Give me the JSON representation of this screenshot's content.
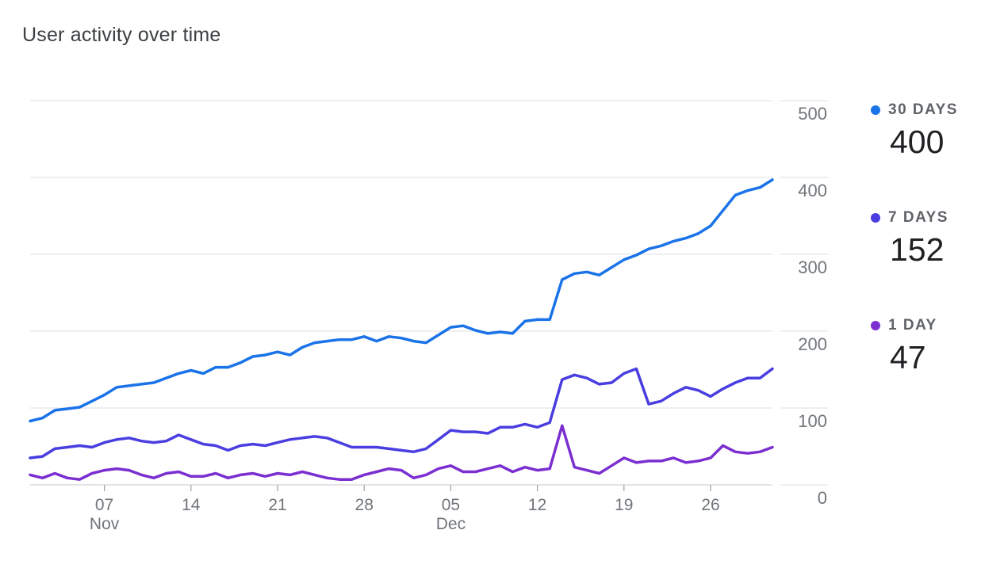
{
  "title": "User activity over time",
  "chart_data": {
    "type": "line",
    "title": "User activity over time",
    "ylim": [
      0,
      500
    ],
    "yticks": [
      0,
      100,
      200,
      300,
      400,
      500
    ],
    "xticks": [
      {
        "label": "07",
        "sub": "Nov",
        "index": 6
      },
      {
        "label": "14",
        "sub": "",
        "index": 13
      },
      {
        "label": "21",
        "sub": "",
        "index": 20
      },
      {
        "label": "28",
        "sub": "",
        "index": 27
      },
      {
        "label": "05",
        "sub": "Dec",
        "index": 34
      },
      {
        "label": "12",
        "sub": "",
        "index": 41
      },
      {
        "label": "19",
        "sub": "",
        "index": 48
      },
      {
        "label": "26",
        "sub": "",
        "index": 55
      }
    ],
    "series": [
      {
        "name": "30 DAYS",
        "color": "#1a73e8",
        "values": [
          83,
          87,
          97,
          99,
          101,
          109,
          117,
          127,
          129,
          131,
          133,
          139,
          145,
          149,
          145,
          153,
          153,
          159,
          167,
          169,
          173,
          169,
          179,
          185,
          187,
          189,
          189,
          193,
          187,
          193,
          191,
          187,
          185,
          195,
          205,
          207,
          201,
          197,
          199,
          197,
          213,
          215,
          215,
          267,
          275,
          277,
          273,
          283,
          293,
          299,
          307,
          311,
          317,
          321,
          327,
          337,
          357,
          377,
          383,
          387,
          397
        ]
      },
      {
        "name": "7 DAYS",
        "color": "#4a3ee0",
        "values": [
          35,
          37,
          47,
          49,
          51,
          49,
          55,
          59,
          61,
          57,
          55,
          57,
          65,
          59,
          53,
          51,
          45,
          51,
          53,
          51,
          55,
          59,
          61,
          63,
          61,
          55,
          49,
          49,
          49,
          47,
          45,
          43,
          47,
          59,
          71,
          69,
          69,
          67,
          75,
          75,
          79,
          75,
          81,
          137,
          143,
          139,
          131,
          133,
          145,
          151,
          105,
          109,
          119,
          127,
          123,
          115,
          125,
          133,
          139,
          139,
          151
        ]
      },
      {
        "name": "1 DAY",
        "color": "#7b2fd0",
        "values": [
          13,
          9,
          15,
          9,
          7,
          15,
          19,
          21,
          19,
          13,
          9,
          15,
          17,
          11,
          11,
          15,
          9,
          13,
          15,
          11,
          15,
          13,
          17,
          13,
          9,
          7,
          7,
          13,
          17,
          21,
          19,
          9,
          13,
          21,
          25,
          17,
          17,
          21,
          25,
          17,
          23,
          19,
          21,
          77,
          23,
          19,
          15,
          25,
          35,
          29,
          31,
          31,
          35,
          29,
          31,
          35,
          51,
          43,
          41,
          43,
          49
        ]
      }
    ]
  },
  "legend": [
    {
      "label": "30 DAYS",
      "value": "400",
      "color": "#1a73e8"
    },
    {
      "label": "7 DAYS",
      "value": "152",
      "color": "#4a3ee0"
    },
    {
      "label": "1 DAY",
      "value": "47",
      "color": "#7b2fd0"
    }
  ]
}
